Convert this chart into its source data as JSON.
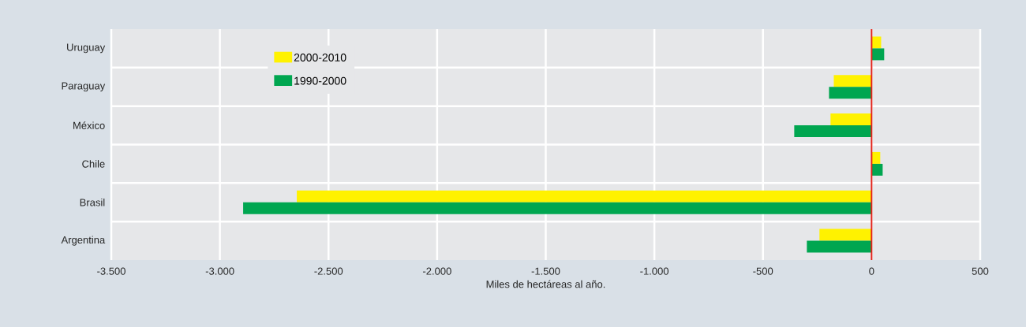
{
  "chart_data": {
    "type": "bar",
    "orientation": "horizontal",
    "categories": [
      "Uruguay",
      "Paraguay",
      "México",
      "Chile",
      "Brasil",
      "Argentina"
    ],
    "series": [
      {
        "name": "2000-2010",
        "color": "#fff200",
        "values": [
          44,
          -174,
          -189,
          40,
          -2646,
          -240
        ]
      },
      {
        "name": "1990-2000",
        "color": "#00a650",
        "values": [
          58,
          -196,
          -356,
          51,
          -2893,
          -298
        ]
      }
    ],
    "xlabel": "Miles de hectáreas al año.",
    "xlim": [
      -3500,
      500
    ],
    "xticks": [
      {
        "value": -3500,
        "label": "-3.500"
      },
      {
        "value": -3000,
        "label": "-3.000"
      },
      {
        "value": -2500,
        "label": "-2.500"
      },
      {
        "value": -2000,
        "label": "-2.000"
      },
      {
        "value": -1500,
        "label": "-1.500"
      },
      {
        "value": -1000,
        "label": "-1.000"
      },
      {
        "value": -500,
        "label": "-500"
      },
      0,
      500
    ],
    "ref_lines": [
      {
        "axis": "x",
        "value": 0,
        "color": "#e2231a"
      }
    ],
    "grid": true,
    "legend": "top left"
  }
}
